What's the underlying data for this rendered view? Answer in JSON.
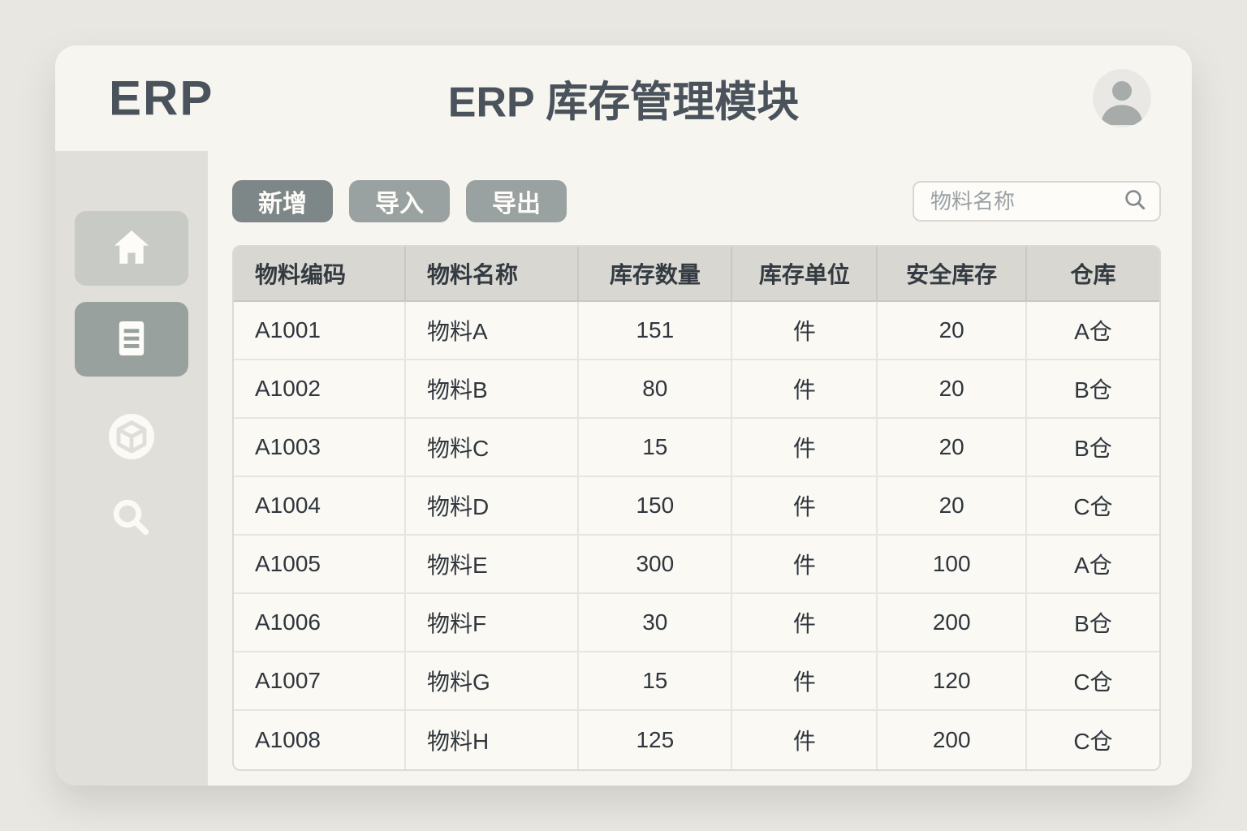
{
  "header": {
    "logo": "ERP",
    "title": "ERP 库存管理模块"
  },
  "sidebar": {
    "items": [
      {
        "id": "home",
        "icon": "home-icon"
      },
      {
        "id": "inventory",
        "icon": "document-icon"
      },
      {
        "id": "materials",
        "icon": "cube-icon"
      },
      {
        "id": "search",
        "icon": "search-icon"
      }
    ]
  },
  "toolbar": {
    "add_label": "新增",
    "import_label": "导入",
    "export_label": "导出",
    "search_placeholder": "物料名称",
    "search_value": ""
  },
  "table": {
    "columns": [
      "物料编码",
      "物料名称",
      "库存数量",
      "库存单位",
      "安全库存",
      "仓库"
    ],
    "rows": [
      [
        "A1001",
        "物料A",
        "151",
        "件",
        "20",
        "A仓"
      ],
      [
        "A1002",
        "物料B",
        "80",
        "件",
        "20",
        "B仓"
      ],
      [
        "A1003",
        "物料C",
        "15",
        "件",
        "20",
        "B仓"
      ],
      [
        "A1004",
        "物料D",
        "150",
        "件",
        "20",
        "C仓"
      ],
      [
        "A1005",
        "物料E",
        "300",
        "件",
        "100",
        "A仓"
      ],
      [
        "A1006",
        "物料F",
        "30",
        "件",
        "200",
        "B仓"
      ],
      [
        "A1007",
        "物料G",
        "15",
        "件",
        "120",
        "C仓"
      ],
      [
        "A1008",
        "物料H",
        "125",
        "件",
        "200",
        "C仓"
      ]
    ]
  },
  "colors": {
    "page_bg": "#e9e7e2",
    "window_bg": "#f7f5f0",
    "sidebar_bg": "#e0dfd9",
    "heading_text": "#4a535c",
    "add_button_bg": "#7e8787",
    "secondary_button_bg": "#99a1a1",
    "table_header_bg": "#d8d7d1",
    "table_row_bg": "#fbf9f4",
    "cell_text": "#2f363d"
  }
}
